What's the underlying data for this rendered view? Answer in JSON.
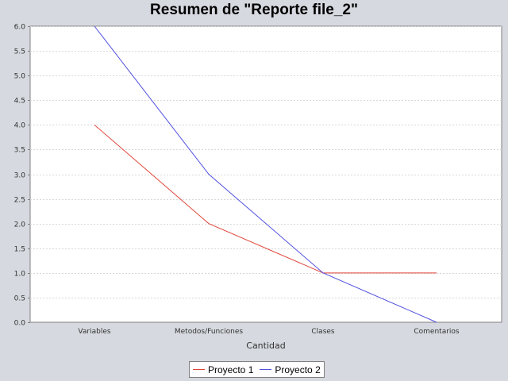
{
  "chart_data": {
    "type": "line",
    "title": "Resumen de \"Reporte file_2\"",
    "xlabel": "Cantidad",
    "ylabel": "",
    "categories": [
      "Variables",
      "Metodos/Funciones",
      "Clases",
      "Comentarios"
    ],
    "series": [
      {
        "name": "Proyecto 1",
        "values": [
          4.0,
          2.0,
          1.0,
          1.0
        ],
        "color": "#e0453a"
      },
      {
        "name": "Proyecto 2",
        "values": [
          6.0,
          3.0,
          1.0,
          0.0
        ],
        "color": "#5050e0"
      }
    ],
    "ylim": [
      0,
      6.0
    ],
    "yticks": [
      "0.0",
      "0.5",
      "1.0",
      "1.5",
      "2.0",
      "2.5",
      "3.0",
      "3.5",
      "4.0",
      "4.5",
      "5.0",
      "5.5",
      "6.0"
    ],
    "grid": true,
    "legend_position": "bottom"
  }
}
